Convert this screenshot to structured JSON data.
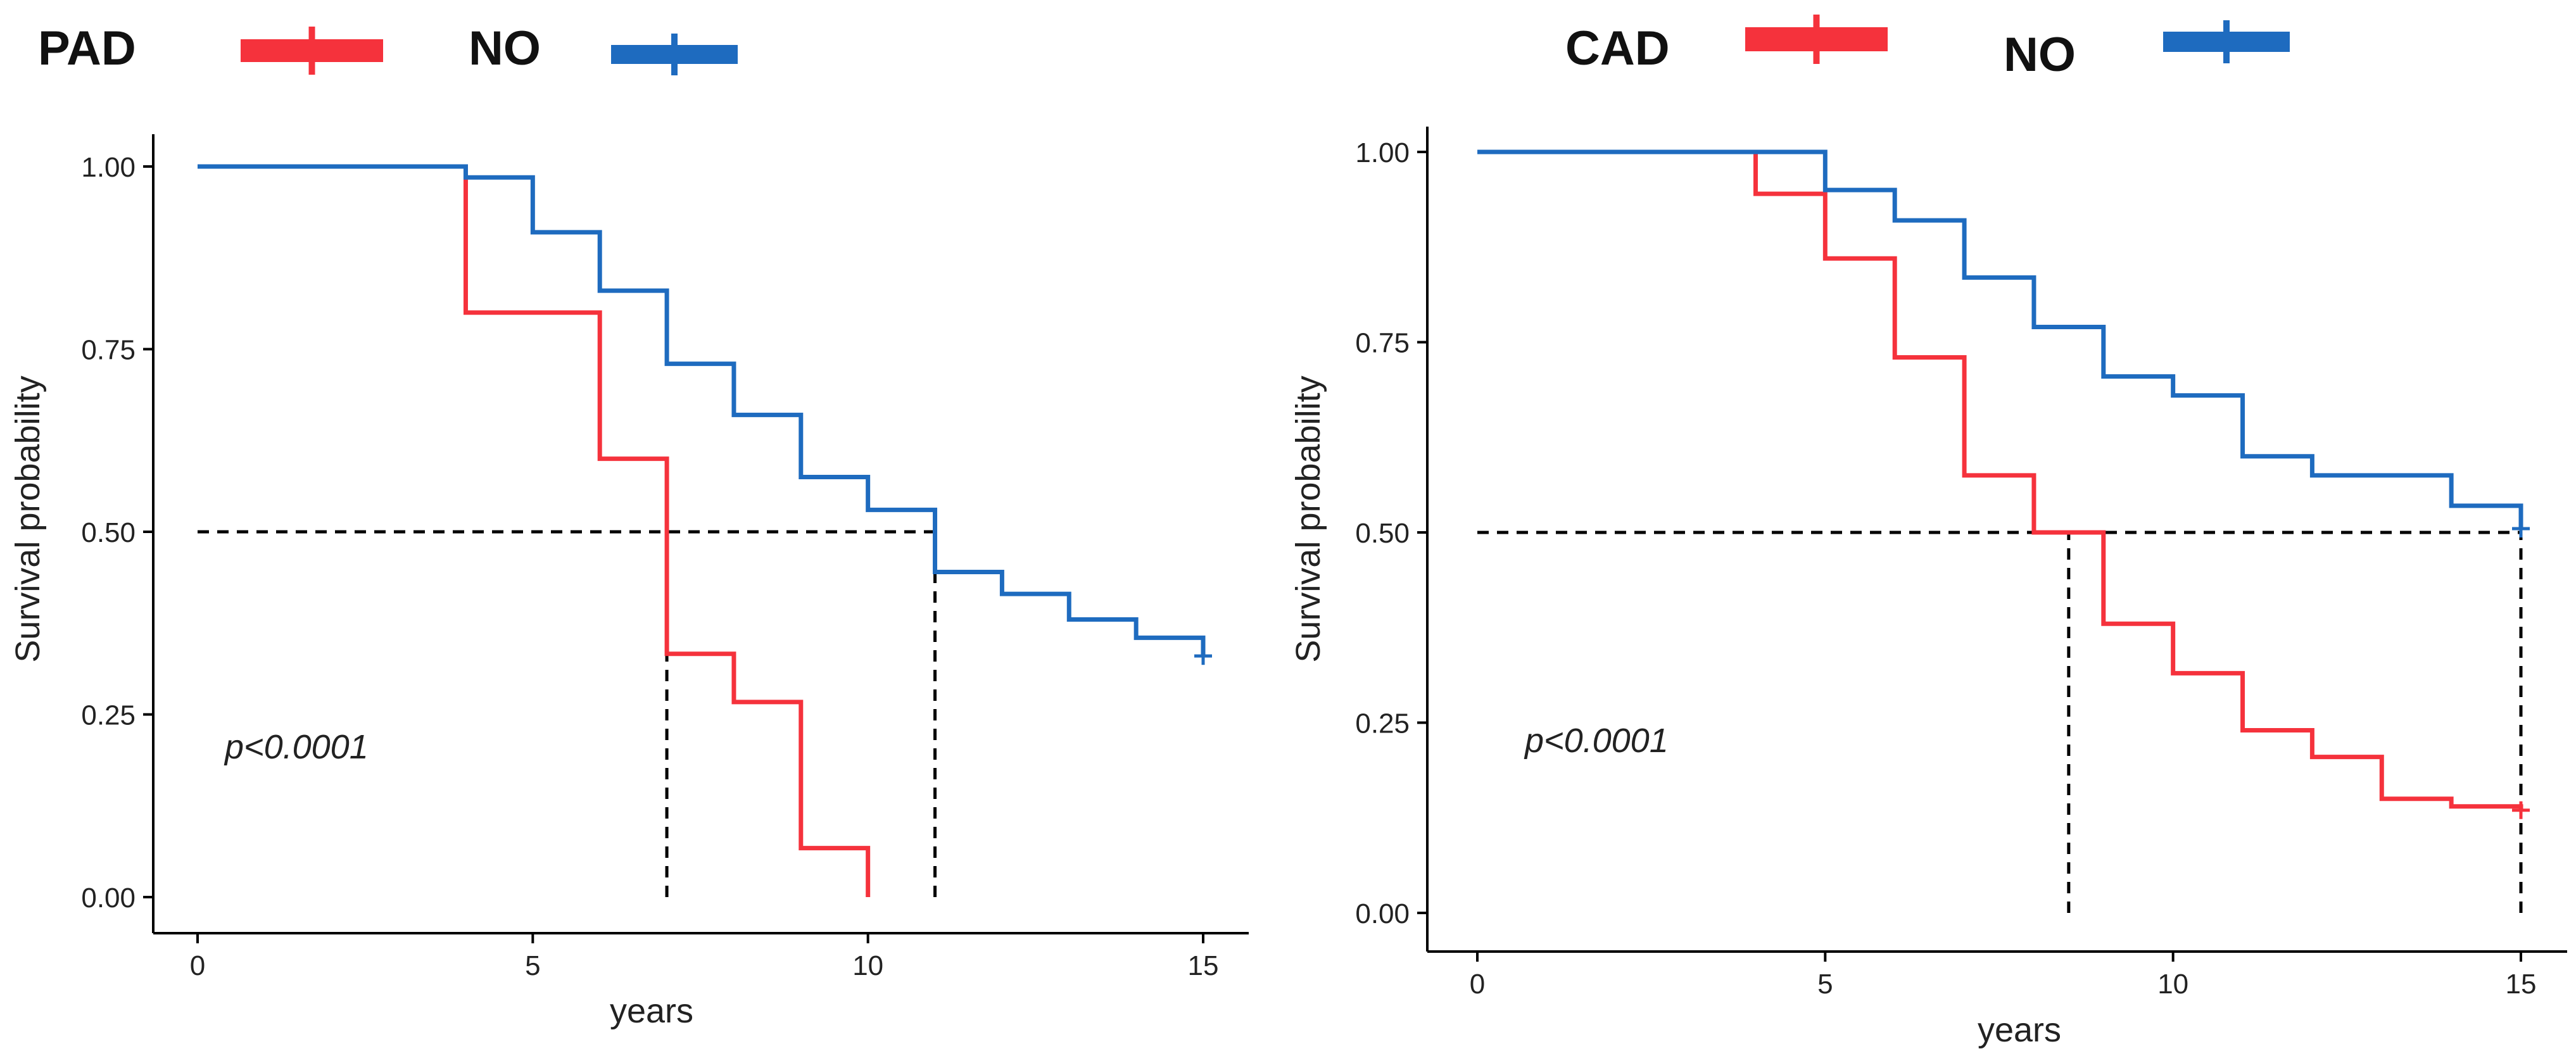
{
  "colors": {
    "red": "#f5323c",
    "blue": "#1e6bbf",
    "axis": "#000000",
    "dash": "#000000"
  },
  "chart_data": [
    {
      "type": "line",
      "step": true,
      "legend": [
        {
          "label": "PAD",
          "color": "#f5323c"
        },
        {
          "label": "NO",
          "color": "#1e6bbf"
        }
      ],
      "xlabel": "years",
      "ylabel": "Survival probability",
      "xlim": [
        0,
        15
      ],
      "ylim": [
        0,
        1
      ],
      "xticks": [
        0,
        5,
        10,
        15
      ],
      "xtick_labels": [
        "0",
        "5",
        "10",
        "15"
      ],
      "yticks": [
        0,
        0.25,
        0.5,
        0.75,
        1
      ],
      "ytick_labels": [
        "0.00",
        "0.25",
        "0.50",
        "0.75",
        "1.00"
      ],
      "annotation": "p<0.0001",
      "series": [
        {
          "name": "PAD",
          "color": "#f5323c",
          "x": [
            0,
            4,
            6,
            7,
            8,
            9,
            10
          ],
          "y": [
            1.0,
            0.8,
            0.6,
            0.333,
            0.267,
            0.067,
            0.0
          ]
        },
        {
          "name": "NO",
          "color": "#1e6bbf",
          "x": [
            0,
            4,
            5,
            6,
            7,
            8,
            9,
            10,
            11,
            12,
            13,
            14,
            15
          ],
          "y": [
            1.0,
            0.985,
            0.91,
            0.83,
            0.73,
            0.66,
            0.575,
            0.53,
            0.445,
            0.415,
            0.38,
            0.355,
            0.33
          ]
        }
      ],
      "median_lines": [
        {
          "y": 0.5,
          "x_from": 0,
          "x_to": 11
        },
        {
          "x": 7,
          "y_from": 0,
          "y_to": 0.5
        },
        {
          "x": 11,
          "y_from": 0,
          "y_to": 0.5
        }
      ]
    },
    {
      "type": "line",
      "step": true,
      "legend": [
        {
          "label": "CAD",
          "color": "#f5323c"
        },
        {
          "label": "NO",
          "color": "#1e6bbf"
        }
      ],
      "xlabel": "years",
      "ylabel": "Survival probability",
      "xlim": [
        0,
        15
      ],
      "ylim": [
        0,
        1
      ],
      "xticks": [
        0,
        5,
        10,
        15
      ],
      "xtick_labels": [
        "0",
        "5",
        "10",
        "15"
      ],
      "yticks": [
        0,
        0.25,
        0.5,
        0.75,
        1
      ],
      "ytick_labels": [
        "0.00",
        "0.25",
        "0.50",
        "0.75",
        "1.00"
      ],
      "annotation": "p<0.0001",
      "series": [
        {
          "name": "CAD",
          "color": "#f5323c",
          "x": [
            0,
            4,
            5,
            6,
            7,
            8,
            9,
            10,
            11,
            12,
            13,
            14,
            15
          ],
          "y": [
            1.0,
            0.945,
            0.86,
            0.73,
            0.575,
            0.5,
            0.38,
            0.315,
            0.24,
            0.205,
            0.15,
            0.14,
            0.135
          ]
        },
        {
          "name": "NO",
          "color": "#1e6bbf",
          "x": [
            0,
            5,
            6,
            7,
            8,
            9,
            10,
            11,
            12,
            14,
            15
          ],
          "y": [
            1.0,
            0.95,
            0.91,
            0.835,
            0.77,
            0.705,
            0.68,
            0.6,
            0.575,
            0.535,
            0.505
          ]
        }
      ],
      "median_lines": [
        {
          "y": 0.5,
          "x_from": 0,
          "x_to": 15
        },
        {
          "x": 8.5,
          "y_from": 0,
          "y_to": 0.5
        },
        {
          "x": 15,
          "y_from": 0,
          "y_to": 0.5
        }
      ]
    }
  ]
}
